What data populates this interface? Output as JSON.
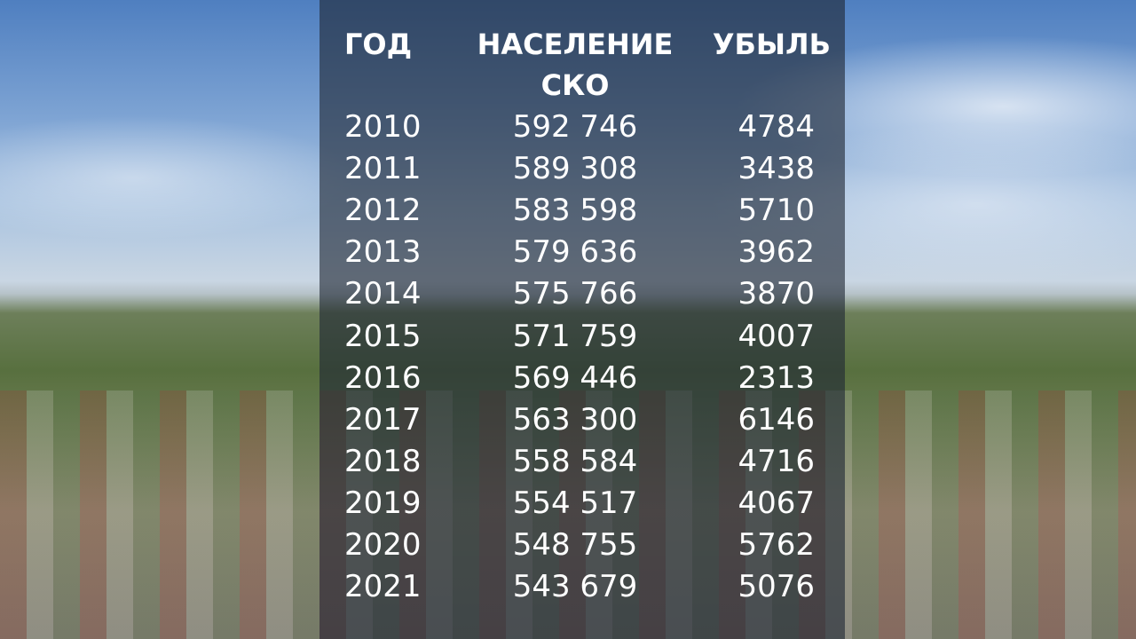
{
  "chart_data": {
    "type": "table",
    "columns": [
      "ГОД",
      "НАСЕЛЕНИЕ СКО",
      "УБЫЛЬ"
    ],
    "header_lines": {
      "year": "ГОД",
      "population_line1": "НАСЕЛЕНИЕ",
      "population_line2": "СКО",
      "loss": "УБЫЛЬ"
    },
    "rows": [
      {
        "year": "2010",
        "population": "592 746",
        "loss": "4784"
      },
      {
        "year": "2011",
        "population": "589 308",
        "loss": "3438"
      },
      {
        "year": "2012",
        "population": "583 598",
        "loss": "5710"
      },
      {
        "year": "2013",
        "population": "579 636",
        "loss": "3962"
      },
      {
        "year": "2014",
        "population": "575 766",
        "loss": "3870"
      },
      {
        "year": "2015",
        "population": "571 759",
        "loss": "4007"
      },
      {
        "year": "2016",
        "population": "569 446",
        "loss": "2313"
      },
      {
        "year": "2017",
        "population": "563 300",
        "loss": "6146"
      },
      {
        "year": "2018",
        "population": "558 584",
        "loss": "4716"
      },
      {
        "year": "2019",
        "population": "554 517",
        "loss": "4067"
      },
      {
        "year": "2020",
        "population": "548 755",
        "loss": "5762"
      },
      {
        "year": "2021",
        "population": "543 679",
        "loss": "5076"
      }
    ]
  }
}
